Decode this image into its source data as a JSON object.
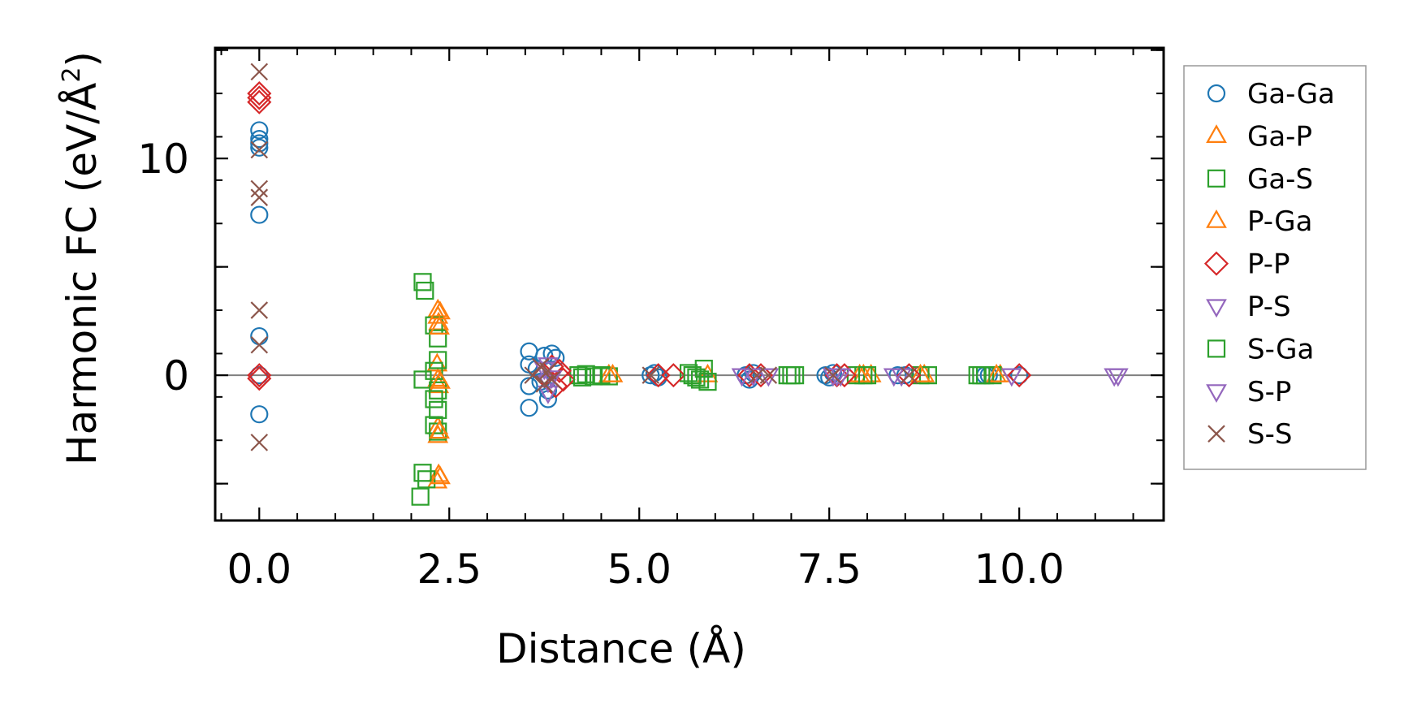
{
  "chart_data": {
    "type": "scatter",
    "title": "",
    "xlabel": "Distance (Å)",
    "ylabel_main": "Harmonic FC (eV/Å",
    "ylabel_sup": "2",
    "ylabel_end": ")",
    "xlim": [
      -0.58,
      11.9
    ],
    "ylim": [
      -6.7,
      15.1
    ],
    "xticks": [
      0.0,
      2.5,
      5.0,
      7.5,
      10.0
    ],
    "xtick_labels": [
      "0.0",
      "2.5",
      "5.0",
      "7.5",
      "10.0"
    ],
    "yticks": [
      0,
      10
    ],
    "ytick_labels": [
      "0",
      "10"
    ],
    "grid": false,
    "zero_line": true,
    "legend_position": "outside-right",
    "series": [
      {
        "name": "Ga-Ga",
        "marker": "circle",
        "color": "#1f77b4",
        "points": [
          [
            0,
            11.3
          ],
          [
            0,
            10.9
          ],
          [
            0,
            10.7
          ],
          [
            0,
            10.5
          ],
          [
            0,
            7.4
          ],
          [
            0,
            1.8
          ],
          [
            0,
            0
          ],
          [
            0,
            -1.8
          ],
          [
            3.55,
            1.1
          ],
          [
            3.55,
            0.5
          ],
          [
            3.55,
            -0.5
          ],
          [
            3.55,
            -1.5
          ],
          [
            3.75,
            0.9
          ],
          [
            3.85,
            1.0
          ],
          [
            3.9,
            0.8
          ],
          [
            3.8,
            -0.7
          ],
          [
            3.8,
            -1.1
          ],
          [
            3.65,
            0.3
          ],
          [
            3.7,
            -0.3
          ],
          [
            5.15,
            0
          ],
          [
            5.2,
            0.1
          ],
          [
            5.25,
            -0.1
          ],
          [
            6.4,
            0
          ],
          [
            6.45,
            -0.2
          ],
          [
            6.5,
            0.1
          ],
          [
            7.45,
            0
          ],
          [
            7.5,
            -0.1
          ],
          [
            7.55,
            0.1
          ],
          [
            8.4,
            0
          ],
          [
            8.5,
            0
          ],
          [
            9.55,
            0
          ],
          [
            9.6,
            0
          ],
          [
            10.0,
            0
          ]
        ]
      },
      {
        "name": "Ga-P",
        "marker": "triangle-up",
        "color": "#ff7f0e",
        "points": [
          [
            2.35,
            3.0
          ],
          [
            2.35,
            2.7
          ],
          [
            2.36,
            2.4
          ],
          [
            2.34,
            0.5
          ],
          [
            2.35,
            -0.2
          ],
          [
            2.36,
            -0.5
          ],
          [
            2.35,
            -2.4
          ],
          [
            2.35,
            -2.8
          ],
          [
            2.36,
            -4.6
          ],
          [
            2.34,
            -4.9
          ],
          [
            4.6,
            0
          ],
          [
            5.9,
            0
          ],
          [
            7.95,
            0
          ],
          [
            8.05,
            0
          ],
          [
            8.75,
            0
          ],
          [
            9.75,
            0
          ]
        ]
      },
      {
        "name": "Ga-S",
        "marker": "square",
        "color": "#2ca02c",
        "points": [
          [
            2.15,
            4.3
          ],
          [
            2.18,
            3.9
          ],
          [
            2.3,
            2.3
          ],
          [
            2.35,
            1.7
          ],
          [
            2.35,
            0.7
          ],
          [
            2.3,
            0.2
          ],
          [
            2.15,
            -0.2
          ],
          [
            2.35,
            -0.7
          ],
          [
            2.3,
            -1.1
          ],
          [
            2.35,
            -1.6
          ],
          [
            2.3,
            -2.3
          ],
          [
            2.35,
            -2.6
          ],
          [
            2.15,
            -4.5
          ],
          [
            2.2,
            -4.8
          ],
          [
            2.12,
            -5.6
          ],
          [
            4.2,
            0
          ],
          [
            4.3,
            0.05
          ],
          [
            4.4,
            -0.05
          ],
          [
            4.5,
            0
          ],
          [
            4.6,
            -0.05
          ],
          [
            5.65,
            0.1
          ],
          [
            5.75,
            -0.1
          ],
          [
            5.85,
            0.3
          ],
          [
            5.9,
            -0.3
          ],
          [
            6.95,
            0
          ],
          [
            7.05,
            0
          ],
          [
            7.85,
            0
          ],
          [
            7.95,
            0
          ],
          [
            8.7,
            0
          ],
          [
            8.8,
            0
          ],
          [
            9.45,
            0
          ],
          [
            9.55,
            0
          ],
          [
            9.65,
            0
          ]
        ]
      },
      {
        "name": "P-Ga",
        "marker": "triangle-up",
        "color": "#ff7f0e",
        "points": [
          [
            2.38,
            2.9
          ],
          [
            2.37,
            2.2
          ],
          [
            2.38,
            -0.3
          ],
          [
            2.37,
            -2.6
          ],
          [
            2.38,
            -4.7
          ],
          [
            4.65,
            0
          ],
          [
            7.9,
            0
          ],
          [
            8.7,
            0
          ],
          [
            9.7,
            0
          ]
        ]
      },
      {
        "name": "P-P",
        "marker": "diamond",
        "color": "#d62728",
        "points": [
          [
            0,
            13.0
          ],
          [
            0,
            12.8
          ],
          [
            0,
            12.6
          ],
          [
            0,
            0
          ],
          [
            0,
            -0.15
          ],
          [
            3.75,
            0
          ],
          [
            3.85,
            0.4
          ],
          [
            3.9,
            -0.5
          ],
          [
            3.95,
            0.2
          ],
          [
            4.0,
            -0.2
          ],
          [
            5.25,
            0
          ],
          [
            5.45,
            0
          ],
          [
            6.45,
            0
          ],
          [
            6.6,
            0
          ],
          [
            7.6,
            0
          ],
          [
            7.7,
            0
          ],
          [
            8.55,
            0
          ],
          [
            10.0,
            0
          ]
        ]
      },
      {
        "name": "P-S",
        "marker": "triangle-down",
        "color": "#9467bd",
        "points": [
          [
            3.8,
            0.5
          ],
          [
            3.85,
            -0.1
          ],
          [
            3.8,
            -0.8
          ],
          [
            6.35,
            0
          ],
          [
            6.7,
            0
          ],
          [
            7.55,
            0
          ],
          [
            7.65,
            0
          ],
          [
            8.35,
            0
          ],
          [
            9.9,
            0
          ],
          [
            11.25,
            0
          ]
        ]
      },
      {
        "name": "S-Ga",
        "marker": "square",
        "color": "#2ca02c",
        "points": [
          [
            4.25,
            -0.1
          ],
          [
            5.7,
            0
          ],
          [
            5.8,
            -0.2
          ],
          [
            7.0,
            0
          ],
          [
            8.0,
            0
          ],
          [
            9.5,
            0
          ]
        ]
      },
      {
        "name": "S-P",
        "marker": "triangle-down",
        "color": "#9467bd",
        "points": [
          [
            3.75,
            0.3
          ],
          [
            3.8,
            -0.3
          ],
          [
            6.5,
            0
          ],
          [
            7.6,
            0
          ],
          [
            8.45,
            0
          ],
          [
            11.3,
            0
          ]
        ]
      },
      {
        "name": "S-S",
        "marker": "x",
        "color": "#8c564b",
        "points": [
          [
            0,
            14.0
          ],
          [
            0,
            10.4
          ],
          [
            0,
            8.6
          ],
          [
            0,
            8.2
          ],
          [
            0,
            3.0
          ],
          [
            0,
            1.4
          ],
          [
            0,
            -3.1
          ],
          [
            3.6,
            0
          ],
          [
            3.7,
            0.4
          ],
          [
            3.8,
            0.2
          ],
          [
            3.85,
            -0.2
          ],
          [
            3.75,
            -0.4
          ],
          [
            5.15,
            0
          ],
          [
            6.55,
            0
          ],
          [
            6.7,
            0
          ],
          [
            7.55,
            0
          ],
          [
            8.55,
            0
          ]
        ]
      }
    ]
  }
}
